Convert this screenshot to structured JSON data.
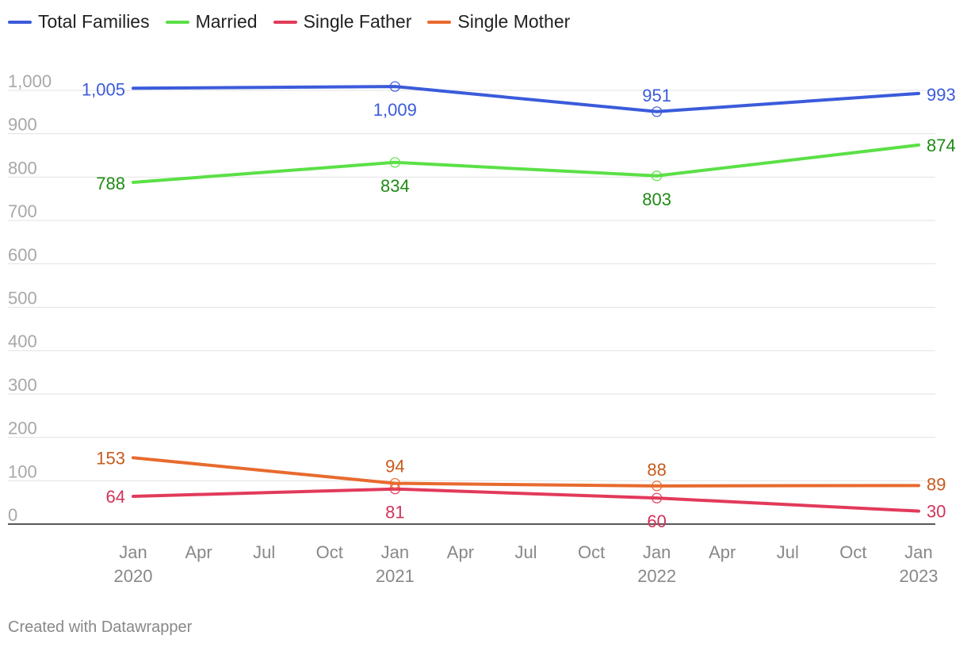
{
  "chart_data": {
    "type": "line",
    "x": [
      "2020-01",
      "2021-01",
      "2022-01",
      "2023-01"
    ],
    "series": [
      {
        "name": "Total Families",
        "color": "#3b5bdb",
        "label_color": "#3b5bdb",
        "values": [
          1005,
          1009,
          951,
          993
        ]
      },
      {
        "name": "Married",
        "color": "#5be046",
        "label_color": "#1f8a14",
        "values": [
          788,
          834,
          803,
          874
        ]
      },
      {
        "name": "Single Father",
        "color": "#e23a5a",
        "label_color": "#d1345a",
        "values": [
          64,
          81,
          60,
          30
        ]
      },
      {
        "name": "Single Mother",
        "color": "#e86a2e",
        "label_color": "#c75a1e",
        "values": [
          153,
          94,
          88,
          89
        ]
      }
    ],
    "data_labels": [
      [
        "1,005",
        "1,009",
        "951",
        "993"
      ],
      [
        "788",
        "834",
        "803",
        "874"
      ],
      [
        "64",
        "81",
        "60",
        "30"
      ],
      [
        "153",
        "94",
        "88",
        "89"
      ]
    ],
    "y_ticks": [
      0,
      100,
      200,
      300,
      400,
      500,
      600,
      700,
      800,
      900,
      1000
    ],
    "y_tick_labels": [
      "0",
      "100",
      "200",
      "300",
      "400",
      "500",
      "600",
      "700",
      "800",
      "900",
      "1,000"
    ],
    "ylim": [
      0,
      1000
    ],
    "x_ticks": [
      {
        "date": "2020-01",
        "month": "Jan",
        "year": "2020"
      },
      {
        "date": "2020-04",
        "month": "Apr",
        "year": ""
      },
      {
        "date": "2020-07",
        "month": "Jul",
        "year": ""
      },
      {
        "date": "2020-10",
        "month": "Oct",
        "year": ""
      },
      {
        "date": "2021-01",
        "month": "Jan",
        "year": "2021"
      },
      {
        "date": "2021-04",
        "month": "Apr",
        "year": ""
      },
      {
        "date": "2021-07",
        "month": "Jul",
        "year": ""
      },
      {
        "date": "2021-10",
        "month": "Oct",
        "year": ""
      },
      {
        "date": "2022-01",
        "month": "Jan",
        "year": "2022"
      },
      {
        "date": "2022-04",
        "month": "Apr",
        "year": ""
      },
      {
        "date": "2022-07",
        "month": "Jul",
        "year": ""
      },
      {
        "date": "2022-10",
        "month": "Oct",
        "year": ""
      },
      {
        "date": "2023-01",
        "month": "Jan",
        "year": "2023"
      }
    ],
    "grid": true,
    "legend_position": "top-left"
  },
  "footer": {
    "credit": "Created with Datawrapper"
  }
}
